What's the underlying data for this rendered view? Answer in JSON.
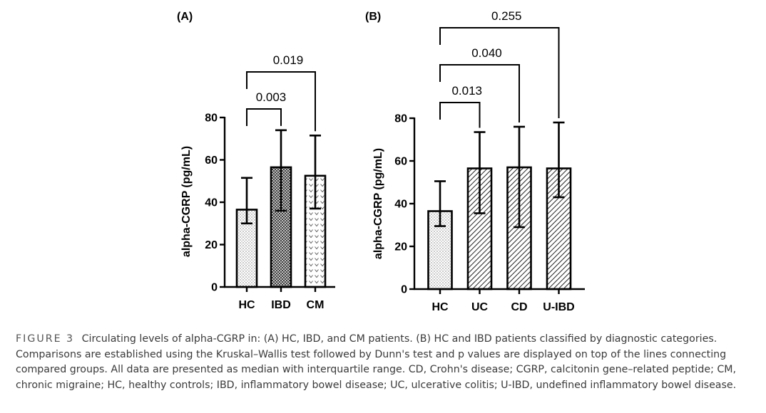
{
  "chart_data": [
    {
      "type": "bar",
      "panel_label": "(A)",
      "ylabel": "alpha-CGRP (pg/mL)",
      "ylim": [
        0,
        80
      ],
      "yticks": [
        "0",
        "20",
        "40",
        "60",
        "80"
      ],
      "categories": [
        "HC",
        "IBD",
        "CM"
      ],
      "values": [
        36.5,
        56.5,
        52.5
      ],
      "error_low": [
        30,
        36,
        37
      ],
      "error_high": [
        51.5,
        74,
        71.5
      ],
      "patterns": [
        "dots",
        "crosshatch",
        "hearts"
      ],
      "comparisons": [
        {
          "from": "HC",
          "to": "IBD",
          "p": "0.003"
        },
        {
          "from": "HC",
          "to": "CM",
          "p": "0.019"
        }
      ]
    },
    {
      "type": "bar",
      "panel_label": "(B)",
      "ylabel": "alpha-CGRP (pg/mL)",
      "ylim": [
        0,
        80
      ],
      "yticks": [
        "0",
        "20",
        "40",
        "60",
        "80"
      ],
      "categories": [
        "HC",
        "UC",
        "CD",
        "U-IBD"
      ],
      "values": [
        36.5,
        56.5,
        57,
        56.5
      ],
      "error_low": [
        29.5,
        35.5,
        29,
        43
      ],
      "error_high": [
        50.5,
        73.5,
        76,
        78
      ],
      "patterns": [
        "dots",
        "diagonal",
        "diagonal",
        "diagonal"
      ],
      "comparisons": [
        {
          "from": "HC",
          "to": "UC",
          "p": "0.013"
        },
        {
          "from": "HC",
          "to": "CD",
          "p": "0.040"
        },
        {
          "from": "HC",
          "to": "U-IBD",
          "p": "0.255"
        }
      ]
    }
  ],
  "caption": {
    "label": "FIGURE 3",
    "text": "Circulating levels of alpha-CGRP in: (A) HC, IBD, and CM patients. (B) HC and IBD patients classified by diagnostic categories. Comparisons are established using the Kruskal–Wallis test followed by Dunn's test and p values are displayed on top of the lines connecting compared groups. All data are presented as median with interquartile range. CD, Crohn's disease; CGRP, calcitonin gene–related peptide; CM, chronic migraine; HC, healthy controls; IBD, inflammatory bowel disease; UC, ulcerative colitis; U-IBD, undefined inflammatory bowel disease."
  }
}
